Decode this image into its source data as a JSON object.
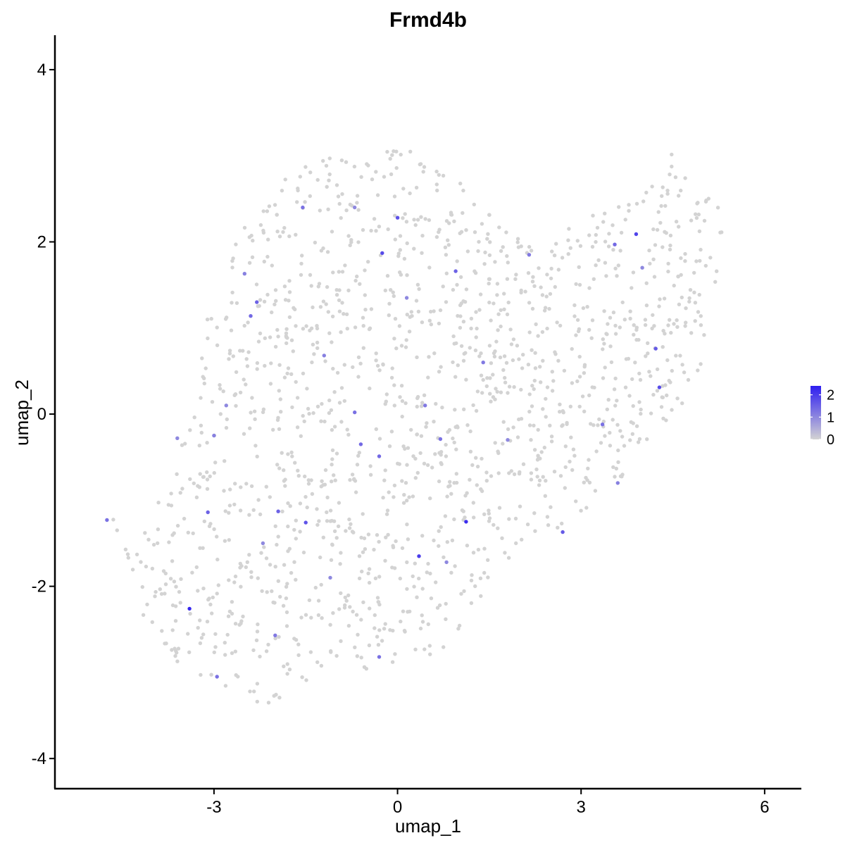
{
  "chart_data": {
    "type": "scatter",
    "title": "Frmd4b",
    "xlabel": "umap_1",
    "ylabel": "umap_2",
    "xlim": [
      -5.6,
      6.6
    ],
    "ylim": [
      -4.35,
      4.4
    ],
    "x_ticks": [
      -3,
      0,
      3,
      6
    ],
    "y_ticks": [
      -4,
      -2,
      0,
      2,
      4
    ],
    "x_tick_labels": [
      "-3",
      "0",
      "3",
      "6"
    ],
    "y_tick_labels": [
      "-4",
      "-2",
      "0",
      "2",
      "4"
    ],
    "grid": false,
    "legend": {
      "placement": "right",
      "type": "colorbar",
      "ticks": [
        0,
        1,
        2
      ],
      "tick_labels": [
        "0",
        "1",
        "2"
      ],
      "range": [
        0,
        2.4
      ],
      "low_color": "#d3d3d3",
      "high_color": "#2e1ef0"
    },
    "colors": {
      "low": "#d3d3d3",
      "high": "#2e1ef0"
    },
    "points": [
      [
        -3.4,
        -2.26,
        2.3
      ],
      [
        1.12,
        -1.25,
        2.2
      ],
      [
        0.35,
        -1.65,
        2.0
      ],
      [
        -0.25,
        1.87,
        1.8
      ],
      [
        0.0,
        2.28,
        1.7
      ],
      [
        3.9,
        2.09,
        1.9
      ],
      [
        4.28,
        0.31,
        1.8
      ],
      [
        4.22,
        0.76,
        1.6
      ],
      [
        -1.5,
        -1.26,
        1.7
      ],
      [
        -1.95,
        -1.13,
        1.5
      ],
      [
        -2.3,
        1.3,
        1.5
      ],
      [
        -2.4,
        1.14,
        1.4
      ],
      [
        -3.1,
        -1.14,
        1.5
      ],
      [
        -0.3,
        -0.49,
        1.4
      ],
      [
        0.95,
        1.66,
        1.5
      ],
      [
        3.55,
        1.97,
        1.4
      ],
      [
        2.7,
        -1.37,
        1.6
      ],
      [
        -0.7,
        0.02,
        1.3
      ],
      [
        -0.6,
        -0.35,
        1.4
      ],
      [
        0.7,
        -0.29,
        1.3
      ],
      [
        3.35,
        -0.12,
        1.3
      ],
      [
        -1.55,
        2.4,
        1.3
      ],
      [
        2.15,
        1.85,
        1.2
      ],
      [
        -4.75,
        -1.23,
        1.3
      ],
      [
        -2.95,
        -3.05,
        1.3
      ],
      [
        -2.0,
        -2.57,
        1.2
      ],
      [
        -0.3,
        -2.82,
        1.3
      ],
      [
        0.45,
        0.1,
        1.2
      ],
      [
        3.6,
        -0.8,
        1.1
      ],
      [
        -1.2,
        0.68,
        1.1
      ],
      [
        -0.7,
        2.4,
        1.0
      ],
      [
        0.15,
        1.35,
        1.0
      ],
      [
        -2.5,
        1.63,
        1.1
      ],
      [
        1.4,
        0.6,
        1.2
      ],
      [
        -3.6,
        -0.28,
        1.0
      ],
      [
        -2.2,
        -1.5,
        1.0
      ],
      [
        0.8,
        -1.72,
        1.0
      ],
      [
        -1.1,
        -1.9,
        1.0
      ],
      [
        4.0,
        1.7,
        1.0
      ],
      [
        -2.8,
        0.1,
        1.0
      ],
      [
        -3.0,
        -0.25,
        1.1
      ],
      [
        1.8,
        -0.3,
        1.0
      ]
    ]
  }
}
